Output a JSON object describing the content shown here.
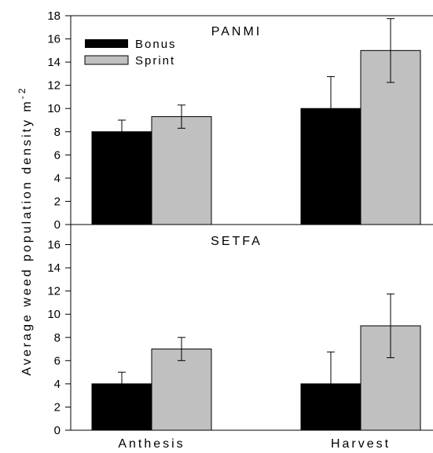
{
  "chart_data": [
    {
      "type": "bar",
      "title": "PANMI",
      "categories": [
        "Anthesis",
        "Harvest"
      ],
      "series": [
        {
          "name": "Bonus",
          "values": [
            8,
            10
          ],
          "errors": [
            1.0,
            2.75
          ]
        },
        {
          "name": "Sprint",
          "values": [
            9.3,
            15
          ],
          "errors": [
            1.0,
            2.75
          ]
        }
      ],
      "ylim": [
        0,
        18
      ],
      "yticks": [
        0,
        2,
        4,
        6,
        8,
        10,
        12,
        14,
        16,
        18
      ],
      "legend_position": "top-left"
    },
    {
      "type": "bar",
      "title": "SETFA",
      "categories": [
        "Anthesis",
        "Harvest"
      ],
      "series": [
        {
          "name": "Bonus",
          "values": [
            4,
            4
          ],
          "errors": [
            1.0,
            2.75
          ]
        },
        {
          "name": "Sprint",
          "values": [
            7,
            9
          ],
          "errors": [
            1.0,
            2.75
          ]
        }
      ],
      "ylim": [
        0,
        18
      ],
      "yticks": [
        0,
        2,
        4,
        6,
        8,
        10,
        12,
        14,
        16
      ],
      "legend_position": "none"
    }
  ],
  "ylabel": {
    "main": "Average weed population density m",
    "superscript": "-2"
  },
  "colors": {
    "Bonus": "#000000",
    "Sprint": "#c0c0c0",
    "axis": "#000000"
  }
}
